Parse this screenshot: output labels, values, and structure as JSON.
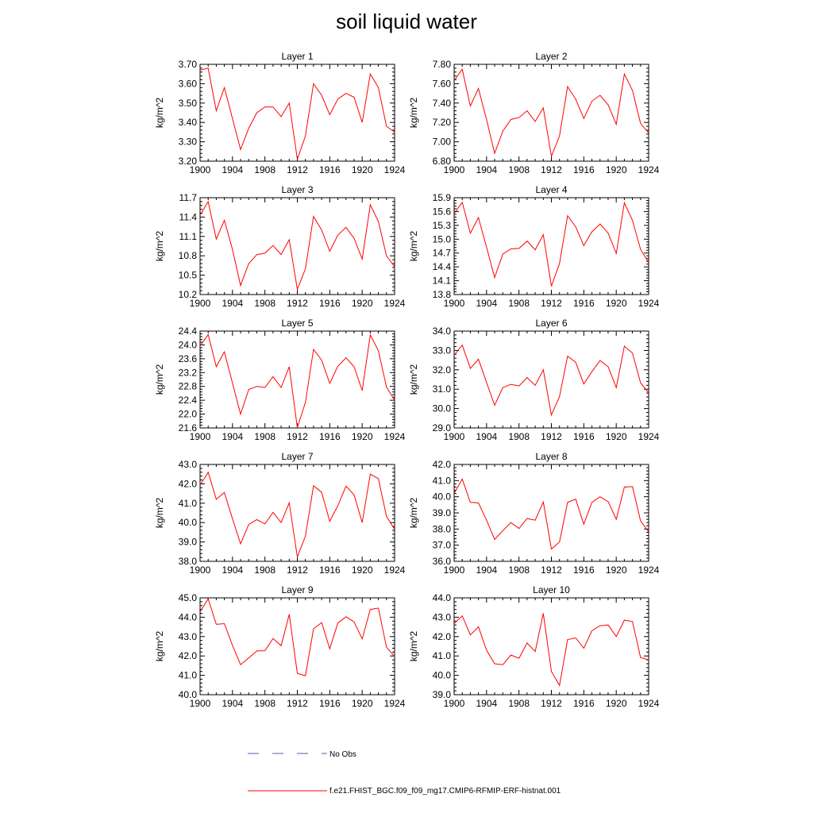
{
  "title": "soil liquid water",
  "legend": {
    "obs_label": "No Obs",
    "model_label": "f.e21.FHIST_BGC.f09_f09_mg17.CMIP6-RFMIP-ERF-histnat.001",
    "obs_color": "#5b5bb0",
    "model_color": "#ff0000"
  },
  "chart_data": [
    {
      "type": "line",
      "title": "Layer 1",
      "ylabel": "kg/m^2",
      "xlim": [
        1900,
        1924
      ],
      "ylim": [
        3.2,
        3.7
      ],
      "xticks": [
        "1900",
        "1904",
        "1908",
        "1912",
        "1916",
        "1920",
        "1924"
      ],
      "yticks": [
        "3.20",
        "3.30",
        "3.40",
        "3.50",
        "3.60",
        "3.70"
      ],
      "x": [
        1900,
        1901,
        1902,
        1903,
        1904,
        1905,
        1906,
        1907,
        1908,
        1909,
        1910,
        1911,
        1912,
        1913,
        1914,
        1915,
        1916,
        1917,
        1918,
        1919,
        1920,
        1921,
        1922,
        1923,
        1924
      ],
      "series": [
        {
          "values": [
            3.67,
            3.68,
            3.46,
            3.58,
            3.42,
            3.26,
            3.37,
            3.45,
            3.48,
            3.48,
            3.43,
            3.5,
            3.21,
            3.33,
            3.6,
            3.54,
            3.44,
            3.52,
            3.55,
            3.53,
            3.4,
            3.65,
            3.58,
            3.38,
            3.35
          ]
        }
      ]
    },
    {
      "type": "line",
      "title": "Layer 2",
      "ylabel": "kg/m^2",
      "xlim": [
        1900,
        1924
      ],
      "ylim": [
        6.8,
        7.8
      ],
      "xticks": [
        "1900",
        "1904",
        "1908",
        "1912",
        "1916",
        "1920",
        "1924"
      ],
      "yticks": [
        "6.80",
        "7.00",
        "7.20",
        "7.40",
        "7.60",
        "7.80"
      ],
      "x": [
        1900,
        1901,
        1902,
        1903,
        1904,
        1905,
        1906,
        1907,
        1908,
        1909,
        1910,
        1911,
        1912,
        1913,
        1914,
        1915,
        1916,
        1917,
        1918,
        1919,
        1920,
        1921,
        1922,
        1923,
        1924
      ],
      "series": [
        {
          "values": [
            7.63,
            7.75,
            7.37,
            7.55,
            7.23,
            6.88,
            7.11,
            7.23,
            7.25,
            7.32,
            7.21,
            7.35,
            6.85,
            7.06,
            7.57,
            7.44,
            7.24,
            7.42,
            7.48,
            7.38,
            7.18,
            7.7,
            7.53,
            7.19,
            7.09
          ]
        }
      ]
    },
    {
      "type": "line",
      "title": "Layer 3",
      "ylabel": "kg/m^2",
      "xlim": [
        1900,
        1924
      ],
      "ylim": [
        10.2,
        11.7
      ],
      "xticks": [
        "1900",
        "1904",
        "1908",
        "1912",
        "1916",
        "1920",
        "1924"
      ],
      "yticks": [
        "10.2",
        "10.5",
        "10.8",
        "11.1",
        "11.4",
        "11.7"
      ],
      "x": [
        1900,
        1901,
        1902,
        1903,
        1904,
        1905,
        1906,
        1907,
        1908,
        1909,
        1910,
        1911,
        1912,
        1913,
        1914,
        1915,
        1916,
        1917,
        1918,
        1919,
        1920,
        1921,
        1922,
        1923,
        1924
      ],
      "series": [
        {
          "values": [
            11.43,
            11.64,
            11.06,
            11.35,
            10.9,
            10.34,
            10.68,
            10.82,
            10.84,
            10.96,
            10.82,
            11.05,
            10.28,
            10.6,
            11.41,
            11.2,
            10.87,
            11.12,
            11.24,
            11.07,
            10.75,
            11.59,
            11.33,
            10.8,
            10.63
          ]
        }
      ]
    },
    {
      "type": "line",
      "title": "Layer 4",
      "ylabel": "kg/m^2",
      "xlim": [
        1900,
        1924
      ],
      "ylim": [
        13.8,
        15.9
      ],
      "xticks": [
        "1900",
        "1904",
        "1908",
        "1912",
        "1916",
        "1920",
        "1924"
      ],
      "yticks": [
        "13.8",
        "14.1",
        "14.4",
        "14.7",
        "15.0",
        "15.3",
        "15.6",
        "15.9"
      ],
      "x": [
        1900,
        1901,
        1902,
        1903,
        1904,
        1905,
        1906,
        1907,
        1908,
        1909,
        1910,
        1911,
        1912,
        1913,
        1914,
        1915,
        1916,
        1917,
        1918,
        1919,
        1920,
        1921,
        1922,
        1923,
        1924
      ],
      "series": [
        {
          "values": [
            15.56,
            15.8,
            15.13,
            15.47,
            14.83,
            14.17,
            14.68,
            14.79,
            14.8,
            14.96,
            14.77,
            15.1,
            13.98,
            14.47,
            15.51,
            15.27,
            14.86,
            15.16,
            15.33,
            15.13,
            14.69,
            15.79,
            15.41,
            14.78,
            14.49
          ]
        }
      ]
    },
    {
      "type": "line",
      "title": "Layer 5",
      "ylabel": "kg/m^2",
      "xlim": [
        1900,
        1924
      ],
      "ylim": [
        21.6,
        24.4
      ],
      "xticks": [
        "1900",
        "1904",
        "1908",
        "1912",
        "1916",
        "1920",
        "1924"
      ],
      "yticks": [
        "21.6",
        "22.0",
        "22.4",
        "22.8",
        "23.2",
        "23.6",
        "24.0",
        "24.4"
      ],
      "x": [
        1900,
        1901,
        1902,
        1903,
        1904,
        1905,
        1906,
        1907,
        1908,
        1909,
        1910,
        1911,
        1912,
        1913,
        1914,
        1915,
        1916,
        1917,
        1918,
        1919,
        1920,
        1921,
        1922,
        1923,
        1924
      ],
      "series": [
        {
          "values": [
            23.97,
            24.3,
            23.37,
            23.8,
            22.9,
            22.0,
            22.71,
            22.8,
            22.77,
            23.08,
            22.77,
            23.37,
            21.61,
            22.34,
            23.87,
            23.56,
            22.89,
            23.38,
            23.63,
            23.37,
            22.68,
            24.29,
            23.83,
            22.78,
            22.4
          ]
        }
      ]
    },
    {
      "type": "line",
      "title": "Layer 6",
      "ylabel": "kg/m^2",
      "xlim": [
        1900,
        1924
      ],
      "ylim": [
        29.0,
        34.0
      ],
      "xticks": [
        "1900",
        "1904",
        "1908",
        "1912",
        "1916",
        "1920",
        "1924"
      ],
      "yticks": [
        "29.0",
        "30.0",
        "31.0",
        "32.0",
        "33.0",
        "34.0"
      ],
      "x": [
        1900,
        1901,
        1902,
        1903,
        1904,
        1905,
        1906,
        1907,
        1908,
        1909,
        1910,
        1911,
        1912,
        1913,
        1914,
        1915,
        1916,
        1917,
        1918,
        1919,
        1920,
        1921,
        1922,
        1923,
        1924
      ],
      "series": [
        {
          "values": [
            32.75,
            33.28,
            32.07,
            32.55,
            31.35,
            30.17,
            31.08,
            31.25,
            31.17,
            31.6,
            31.2,
            32.0,
            29.67,
            30.62,
            32.71,
            32.39,
            31.27,
            31.9,
            32.48,
            32.16,
            31.08,
            33.22,
            32.87,
            31.33,
            30.8
          ]
        }
      ]
    },
    {
      "type": "line",
      "title": "Layer 7",
      "ylabel": "kg/m^2",
      "xlim": [
        1900,
        1924
      ],
      "ylim": [
        38.0,
        43.0
      ],
      "xticks": [
        "1900",
        "1904",
        "1908",
        "1912",
        "1916",
        "1920",
        "1924"
      ],
      "yticks": [
        "38.0",
        "39.0",
        "40.0",
        "41.0",
        "42.0",
        "43.0"
      ],
      "x": [
        1900,
        1901,
        1902,
        1903,
        1904,
        1905,
        1906,
        1907,
        1908,
        1909,
        1910,
        1911,
        1912,
        1913,
        1914,
        1915,
        1916,
        1917,
        1918,
        1919,
        1920,
        1921,
        1922,
        1923,
        1924
      ],
      "series": [
        {
          "values": [
            41.93,
            42.6,
            41.2,
            41.55,
            40.2,
            38.9,
            39.9,
            40.15,
            39.93,
            40.53,
            40.0,
            41.02,
            38.23,
            39.3,
            41.9,
            41.56,
            40.07,
            40.87,
            41.88,
            41.43,
            40.0,
            42.5,
            42.27,
            40.32,
            39.65
          ]
        }
      ]
    },
    {
      "type": "line",
      "title": "Layer 8",
      "ylabel": "kg/m^2",
      "xlim": [
        1900,
        1924
      ],
      "ylim": [
        36.0,
        42.0
      ],
      "xticks": [
        "1900",
        "1904",
        "1908",
        "1912",
        "1916",
        "1920",
        "1924"
      ],
      "yticks": [
        "36.0",
        "37.0",
        "38.0",
        "39.0",
        "40.0",
        "41.0",
        "42.0"
      ],
      "x": [
        1900,
        1901,
        1902,
        1903,
        1904,
        1905,
        1906,
        1907,
        1908,
        1909,
        1910,
        1911,
        1912,
        1913,
        1914,
        1915,
        1916,
        1917,
        1918,
        1919,
        1920,
        1921,
        1922,
        1923,
        1924
      ],
      "series": [
        {
          "values": [
            40.2,
            41.1,
            39.65,
            39.62,
            38.55,
            37.35,
            37.9,
            38.4,
            38.03,
            38.65,
            38.55,
            39.68,
            36.76,
            37.2,
            39.65,
            39.85,
            38.3,
            39.65,
            40.0,
            39.7,
            38.6,
            40.6,
            40.63,
            38.5,
            37.83
          ]
        }
      ]
    },
    {
      "type": "line",
      "title": "Layer 9",
      "ylabel": "kg/m^2",
      "xlim": [
        1900,
        1924
      ],
      "ylim": [
        40.0,
        45.0
      ],
      "xticks": [
        "1900",
        "1904",
        "1908",
        "1912",
        "1916",
        "1920",
        "1924"
      ],
      "yticks": [
        "40.0",
        "41.0",
        "42.0",
        "43.0",
        "44.0",
        "45.0"
      ],
      "x": [
        1900,
        1901,
        1902,
        1903,
        1904,
        1905,
        1906,
        1907,
        1908,
        1909,
        1910,
        1911,
        1912,
        1913,
        1914,
        1915,
        1916,
        1917,
        1918,
        1919,
        1920,
        1921,
        1922,
        1923,
        1924
      ],
      "series": [
        {
          "values": [
            44.28,
            44.95,
            43.63,
            43.67,
            42.55,
            41.55,
            41.9,
            42.26,
            42.27,
            42.9,
            42.53,
            44.15,
            41.1,
            40.98,
            43.4,
            43.72,
            42.37,
            43.7,
            44.02,
            43.76,
            42.88,
            44.4,
            44.47,
            42.45,
            41.97
          ]
        }
      ]
    },
    {
      "type": "line",
      "title": "Layer 10",
      "ylabel": "kg/m^2",
      "xlim": [
        1900,
        1924
      ],
      "ylim": [
        39.0,
        44.0
      ],
      "xticks": [
        "1900",
        "1904",
        "1908",
        "1912",
        "1916",
        "1920",
        "1924"
      ],
      "yticks": [
        "39.0",
        "40.0",
        "41.0",
        "42.0",
        "43.0",
        "44.0"
      ],
      "x": [
        1900,
        1901,
        1902,
        1903,
        1904,
        1905,
        1906,
        1907,
        1908,
        1909,
        1910,
        1911,
        1912,
        1913,
        1914,
        1915,
        1916,
        1917,
        1918,
        1919,
        1920,
        1921,
        1922,
        1923,
        1924
      ],
      "series": [
        {
          "values": [
            42.67,
            43.07,
            42.08,
            42.5,
            41.3,
            40.6,
            40.55,
            41.05,
            40.88,
            41.67,
            41.23,
            43.2,
            40.2,
            39.48,
            41.85,
            41.93,
            41.4,
            42.3,
            42.56,
            42.6,
            42.0,
            42.85,
            42.78,
            40.92,
            40.8
          ]
        }
      ]
    }
  ]
}
